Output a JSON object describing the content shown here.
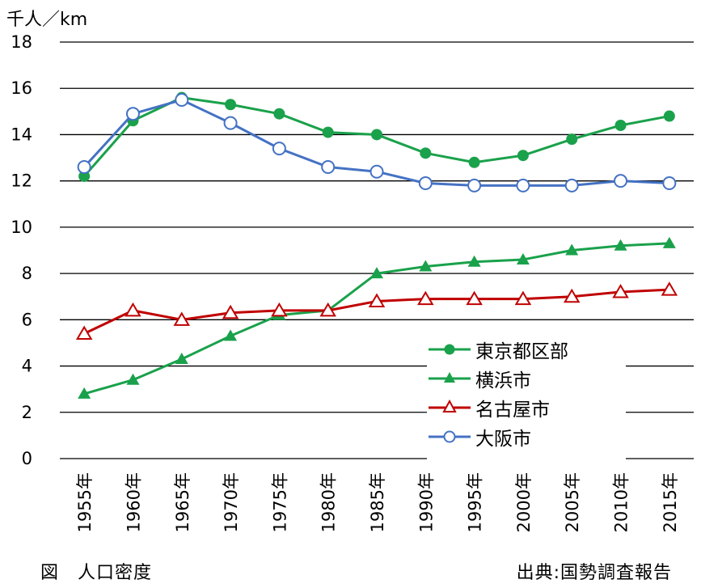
{
  "unit_label": "千人／km",
  "caption": "図　人口密度",
  "source": "出典:国勢調査報告",
  "chart_data": {
    "type": "line",
    "title": "",
    "xlabel": "",
    "ylabel": "千人／km",
    "ylim": [
      0,
      18
    ],
    "yticks": [
      0,
      2,
      4,
      6,
      8,
      10,
      12,
      14,
      16,
      18
    ],
    "grid": true,
    "legend_position": "bottom-right",
    "categories": [
      "1955年",
      "1960年",
      "1965年",
      "1970年",
      "1975年",
      "1980年",
      "1985年",
      "1990年",
      "1995年",
      "2000年",
      "2005年",
      "2010年",
      "2015年"
    ],
    "series": [
      {
        "name": "東京都区部",
        "color": "#1aa14b",
        "marker": "filled-circle",
        "values": [
          12.2,
          14.6,
          15.6,
          15.3,
          14.9,
          14.1,
          14.0,
          13.2,
          12.8,
          13.1,
          13.8,
          14.4,
          14.8
        ]
      },
      {
        "name": "横浜市",
        "color": "#1aa14b",
        "marker": "filled-triangle",
        "values": [
          2.8,
          3.4,
          4.3,
          5.3,
          6.2,
          6.4,
          8.0,
          8.3,
          8.5,
          8.6,
          9.0,
          9.2,
          9.3
        ]
      },
      {
        "name": "名古屋市",
        "color": "#c00000",
        "marker": "open-triangle",
        "values": [
          5.4,
          6.4,
          6.0,
          6.3,
          6.4,
          6.4,
          6.8,
          6.9,
          6.9,
          6.9,
          7.0,
          7.2,
          7.3
        ]
      },
      {
        "name": "大阪市",
        "color": "#4472c4",
        "marker": "open-circle",
        "values": [
          12.6,
          14.9,
          15.5,
          14.5,
          13.4,
          12.6,
          12.4,
          11.9,
          11.8,
          11.8,
          11.8,
          12.0,
          11.9
        ]
      }
    ]
  }
}
